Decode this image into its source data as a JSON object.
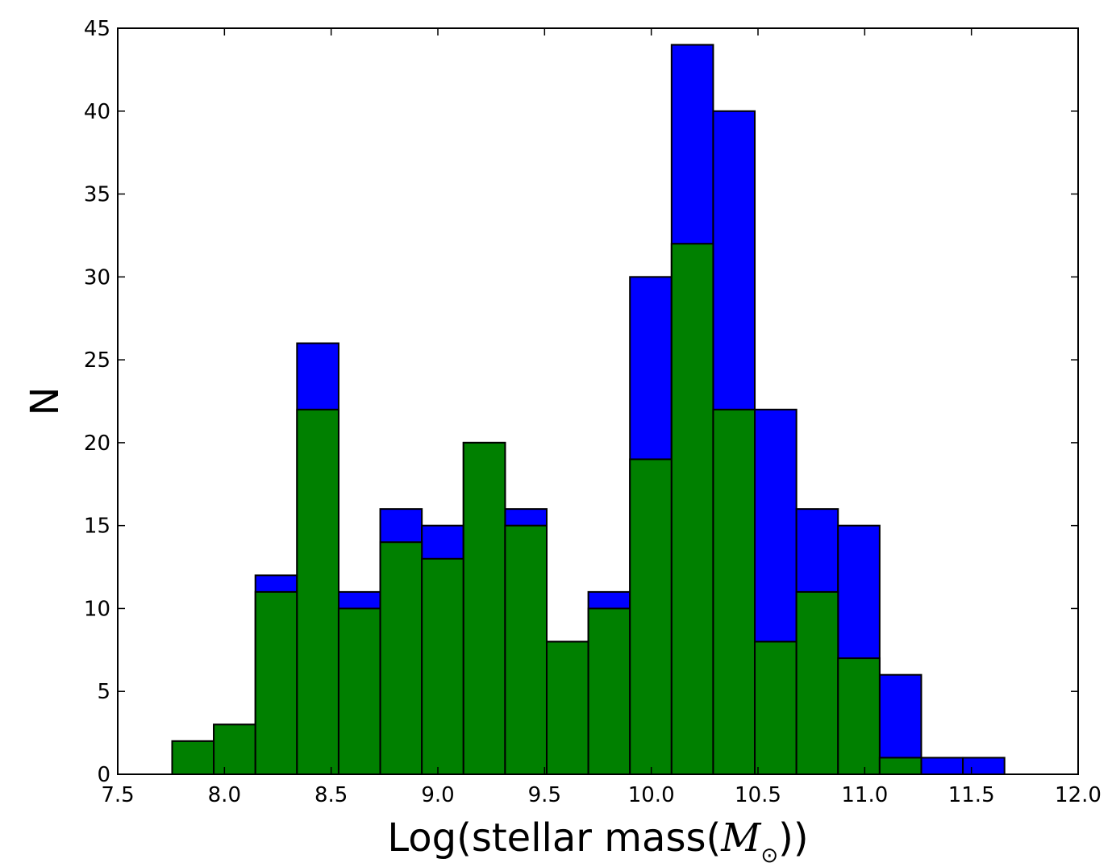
{
  "chart_data": {
    "type": "bar",
    "title": "",
    "xlabel": "Log(stellar mass(M⊙))",
    "xlabel_parts": {
      "prefix": "Log(stellar mass(",
      "symbol": "M",
      "subscript": "⊙",
      "suffix": "))"
    },
    "ylabel": "N",
    "xlim": [
      7.5,
      12.0
    ],
    "ylim": [
      0,
      45
    ],
    "x_ticks": [
      "7.5",
      "8.0",
      "8.5",
      "9.0",
      "9.5",
      "10.0",
      "10.5",
      "11.0",
      "11.5",
      "12.0"
    ],
    "y_ticks": [
      "0",
      "5",
      "10",
      "15",
      "20",
      "25",
      "30",
      "35",
      "40",
      "45"
    ],
    "grid": false,
    "legend": null,
    "bin_edges": [
      7.755,
      7.95,
      8.145,
      8.34,
      8.535,
      8.73,
      8.925,
      9.12,
      9.315,
      9.51,
      9.705,
      9.9,
      10.095,
      10.29,
      10.485,
      10.68,
      10.875,
      11.07,
      11.265,
      11.46,
      11.655
    ],
    "series": [
      {
        "color": "#0000ff",
        "values": [
          2,
          3,
          12,
          26,
          11,
          16,
          15,
          20,
          16,
          8,
          11,
          30,
          44,
          40,
          22,
          16,
          15,
          6,
          1,
          1
        ]
      },
      {
        "color": "#008000",
        "values": [
          2,
          3,
          11,
          22,
          10,
          14,
          13,
          20,
          15,
          8,
          10,
          19,
          32,
          22,
          8,
          11,
          7,
          1,
          0,
          0
        ]
      }
    ]
  }
}
